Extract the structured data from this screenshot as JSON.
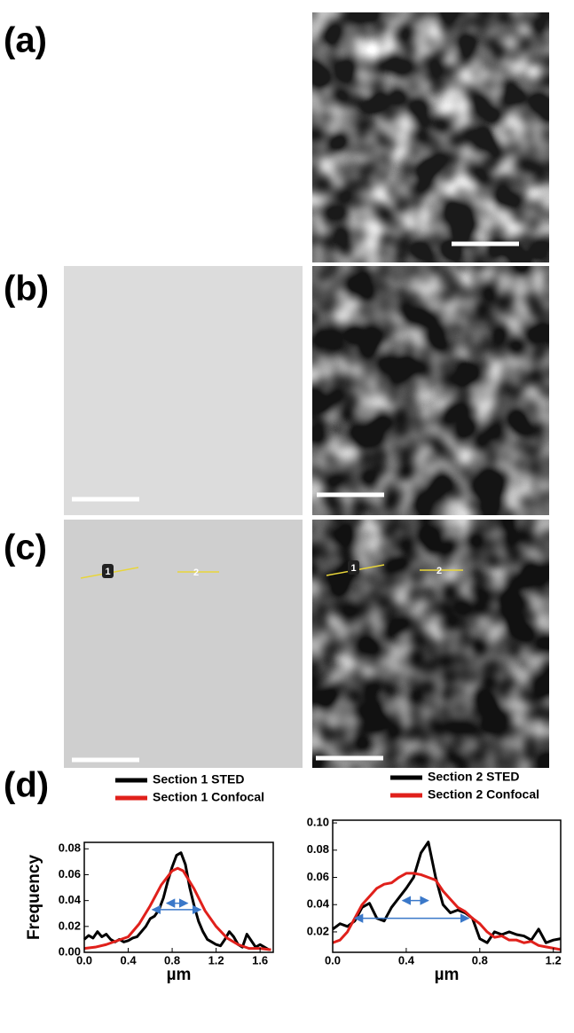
{
  "panels": [
    {
      "label": "(a)"
    },
    {
      "label": "(b)"
    },
    {
      "label": "(c)",
      "markers": [
        "1",
        "2"
      ]
    },
    {
      "label": "(d)"
    }
  ],
  "chart_data": [
    {
      "type": "line",
      "x_label": "µm",
      "y_label": "Frequency",
      "xlim": [
        0,
        1.72
      ],
      "ylim": [
        0,
        0.085
      ],
      "xticks": [
        {
          "value": 0,
          "label": "0.0"
        },
        {
          "value": 0.4,
          "label": "0.4"
        },
        {
          "value": 0.8,
          "label": "0.8"
        },
        {
          "value": 1.2,
          "label": "1.2"
        },
        {
          "value": 1.6,
          "label": "1.6"
        }
      ],
      "yticks": [
        {
          "value": 0,
          "label": "0.00"
        },
        {
          "value": 0.02,
          "label": "0.02"
        },
        {
          "value": 0.04,
          "label": "0.04"
        },
        {
          "value": 0.06,
          "label": "0.06"
        },
        {
          "value": 0.08,
          "label": "0.08"
        }
      ],
      "series": [
        {
          "name": "Section 1 STED",
          "color": "#000000",
          "x": [
            0,
            0.04,
            0.08,
            0.12,
            0.16,
            0.2,
            0.24,
            0.28,
            0.32,
            0.36,
            0.4,
            0.44,
            0.48,
            0.52,
            0.56,
            0.6,
            0.64,
            0.68,
            0.72,
            0.76,
            0.8,
            0.84,
            0.88,
            0.92,
            0.96,
            1.0,
            1.04,
            1.08,
            1.12,
            1.16,
            1.2,
            1.24,
            1.28,
            1.32,
            1.36,
            1.4,
            1.44,
            1.48,
            1.52,
            1.56,
            1.6,
            1.64,
            1.68
          ],
          "values": [
            0.01,
            0.013,
            0.011,
            0.016,
            0.012,
            0.014,
            0.01,
            0.008,
            0.01,
            0.008,
            0.009,
            0.011,
            0.012,
            0.016,
            0.02,
            0.026,
            0.028,
            0.033,
            0.042,
            0.055,
            0.066,
            0.075,
            0.077,
            0.068,
            0.05,
            0.036,
            0.024,
            0.016,
            0.01,
            0.008,
            0.006,
            0.005,
            0.01,
            0.016,
            0.012,
            0.006,
            0.004,
            0.014,
            0.009,
            0.004,
            0.006,
            0.004,
            0.002
          ]
        },
        {
          "name": "Section 1 Confocal",
          "color": "#e0201b",
          "x": [
            0,
            0.1,
            0.2,
            0.3,
            0.4,
            0.5,
            0.6,
            0.7,
            0.8,
            0.85,
            0.9,
            1.0,
            1.1,
            1.2,
            1.3,
            1.4,
            1.5,
            1.6,
            1.7
          ],
          "values": [
            0.003,
            0.004,
            0.006,
            0.009,
            0.012,
            0.022,
            0.036,
            0.052,
            0.063,
            0.065,
            0.063,
            0.049,
            0.032,
            0.02,
            0.011,
            0.006,
            0.003,
            0.003,
            0.002
          ]
        }
      ],
      "fwhm_arrows": [
        {
          "x": [
            0.75,
            0.94
          ],
          "y": 0.038
        },
        {
          "x": [
            0.62,
            1.06
          ],
          "y": 0.033
        }
      ]
    },
    {
      "type": "line",
      "x_label": "µm",
      "xlim": [
        0,
        1.24
      ],
      "ylim": [
        0.005,
        0.102
      ],
      "xticks": [
        {
          "value": 0,
          "label": "0.0"
        },
        {
          "value": 0.4,
          "label": "0.4"
        },
        {
          "value": 0.8,
          "label": "0.8"
        },
        {
          "value": 1.2,
          "label": "1.2"
        }
      ],
      "yticks": [
        0.02,
        0.04,
        0.06,
        0.08,
        {
          "value": 0.1,
          "label": "0.10"
        }
      ],
      "series": [
        {
          "name": "Section 2 STED",
          "color": "#000000",
          "x": [
            0,
            0.04,
            0.08,
            0.12,
            0.16,
            0.2,
            0.24,
            0.28,
            0.32,
            0.36,
            0.4,
            0.44,
            0.48,
            0.52,
            0.56,
            0.6,
            0.64,
            0.68,
            0.72,
            0.76,
            0.8,
            0.84,
            0.88,
            0.92,
            0.96,
            1.0,
            1.04,
            1.08,
            1.12,
            1.16,
            1.2,
            1.24
          ],
          "values": [
            0.022,
            0.026,
            0.024,
            0.028,
            0.038,
            0.041,
            0.03,
            0.028,
            0.038,
            0.045,
            0.052,
            0.06,
            0.078,
            0.086,
            0.06,
            0.04,
            0.034,
            0.036,
            0.034,
            0.03,
            0.015,
            0.012,
            0.02,
            0.018,
            0.02,
            0.018,
            0.017,
            0.014,
            0.022,
            0.012,
            0.014,
            0.015
          ]
        },
        {
          "name": "Section 2 Confocal",
          "color": "#e0201b",
          "x": [
            0,
            0.04,
            0.08,
            0.12,
            0.16,
            0.2,
            0.24,
            0.28,
            0.32,
            0.36,
            0.4,
            0.44,
            0.48,
            0.52,
            0.56,
            0.6,
            0.64,
            0.68,
            0.72,
            0.76,
            0.8,
            0.84,
            0.88,
            0.92,
            0.96,
            1.0,
            1.04,
            1.08,
            1.12,
            1.16,
            1.2,
            1.24
          ],
          "values": [
            0.012,
            0.014,
            0.02,
            0.03,
            0.04,
            0.046,
            0.052,
            0.055,
            0.056,
            0.06,
            0.063,
            0.063,
            0.062,
            0.06,
            0.058,
            0.05,
            0.044,
            0.038,
            0.035,
            0.03,
            0.026,
            0.02,
            0.016,
            0.017,
            0.014,
            0.014,
            0.012,
            0.013,
            0.01,
            0.009,
            0.008,
            0.007
          ]
        }
      ],
      "fwhm_arrows": [
        {
          "x": [
            0.38,
            0.52
          ],
          "y": 0.043
        },
        {
          "x": [
            0.12,
            0.74
          ],
          "y": 0.03
        }
      ]
    }
  ]
}
